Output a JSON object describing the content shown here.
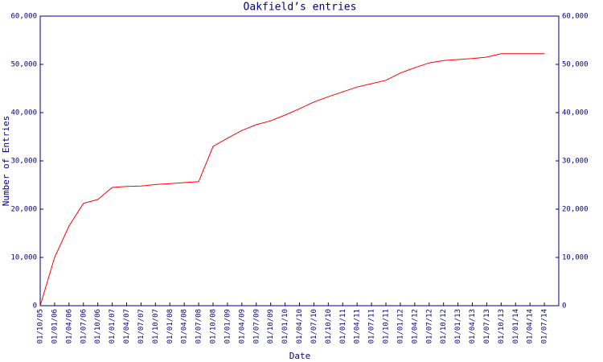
{
  "chart_data": {
    "type": "line",
    "title": "Oakfield’s entries",
    "xlabel": "Date",
    "ylabel": "Number of Entries",
    "x": [
      "01/10/05",
      "01/01/06",
      "01/04/06",
      "01/07/06",
      "01/10/06",
      "01/01/07",
      "01/04/07",
      "01/07/07",
      "01/10/07",
      "01/01/08",
      "01/04/08",
      "01/07/08",
      "01/10/08",
      "01/01/09",
      "01/04/09",
      "01/07/09",
      "01/10/09",
      "01/01/10",
      "01/04/10",
      "01/07/10",
      "01/10/10",
      "01/01/11",
      "01/04/11",
      "01/07/11",
      "01/10/11",
      "01/01/12",
      "01/04/12",
      "01/07/12",
      "01/10/12",
      "01/01/13",
      "01/04/13",
      "01/07/13",
      "01/10/13",
      "01/01/14",
      "01/04/14",
      "01/07/14"
    ],
    "values": [
      0,
      10000,
      16500,
      21200,
      22000,
      24500,
      24700,
      24800,
      25100,
      25300,
      25500,
      25700,
      33000,
      34700,
      36300,
      37500,
      38300,
      39500,
      40800,
      42200,
      43300,
      44300,
      45300,
      46000,
      46700,
      48200,
      49300,
      50300,
      50800,
      51000,
      51200,
      51500,
      52200,
      52200,
      52200,
      52200
    ],
    "color": "#ff0000",
    "ylim": [
      0,
      60000
    ],
    "yticks": [
      0,
      {
        "value": 10000,
        "label": "10,000"
      },
      {
        "value": 20000,
        "label": "20,000"
      },
      {
        "value": 30000,
        "label": "30,000"
      },
      {
        "value": 40000,
        "label": "40,000"
      },
      {
        "value": 50000,
        "label": "50,000"
      },
      {
        "value": 60000,
        "label": "60,000"
      }
    ]
  }
}
